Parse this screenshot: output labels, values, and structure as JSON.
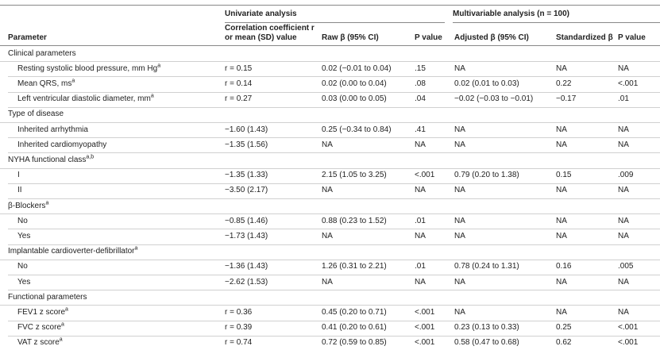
{
  "table": {
    "groups": [
      {
        "label": "Univariate analysis"
      },
      {
        "label": "Multivariable analysis (n = 100)"
      }
    ],
    "columns": [
      [
        "Parameter"
      ],
      [
        "Correlation coefficient r",
        "or mean (SD) value"
      ],
      [
        "Raw β (95% CI)"
      ],
      [
        "P value"
      ],
      [
        "Adjusted β (95% CI)"
      ],
      [
        "Standardized β"
      ],
      [
        "P value"
      ]
    ],
    "rows": [
      {
        "label": "Clinical parameters"
      },
      {
        "label": "Resting systolic blood pressure, mm Hg",
        "sup": "a",
        "cells": [
          "r = 0.15",
          "0.02 (−0.01 to 0.04)",
          ".15",
          "NA",
          "NA",
          "NA"
        ]
      },
      {
        "label": "Mean QRS, ms",
        "sup": "a",
        "cells": [
          "r = 0.14",
          "0.02 (0.00 to 0.04)",
          ".08",
          "0.02 (0.01 to 0.03)",
          "0.22",
          "<.001"
        ]
      },
      {
        "label": "Left ventricular diastolic diameter, mm",
        "sup": "a",
        "cells": [
          "r = 0.27",
          "0.03 (0.00 to 0.05)",
          ".04",
          "−0.02 (−0.03 to −0.01)",
          "−0.17",
          ".01"
        ]
      },
      {
        "label": "Type of disease"
      },
      {
        "label": "Inherited arrhythmia",
        "cells": [
          "−1.60 (1.43)",
          "0.25 (−0.34 to 0.84)",
          ".41",
          "NA",
          "NA",
          "NA"
        ]
      },
      {
        "label": "Inherited cardiomyopathy",
        "cells": [
          "−1.35 (1.56)",
          "NA",
          "NA",
          "NA",
          "NA",
          "NA"
        ]
      },
      {
        "label": "NYHA functional class",
        "sup": "a,b"
      },
      {
        "label": "I",
        "cells": [
          "−1.35 (1.33)",
          "2.15 (1.05 to 3.25)",
          "<.001",
          "0.79 (0.20 to 1.38)",
          "0.15",
          ".009"
        ]
      },
      {
        "label": "II",
        "cells": [
          "−3.50 (2.17)",
          "NA",
          "NA",
          "NA",
          "NA",
          "NA"
        ]
      },
      {
        "label": "β-Blockers",
        "sup": "a"
      },
      {
        "label": "No",
        "cells": [
          "−0.85 (1.46)",
          "0.88 (0.23 to 1.52)",
          ".01",
          "NA",
          "NA",
          "NA"
        ]
      },
      {
        "label": "Yes",
        "cells": [
          "−1.73 (1.43)",
          "NA",
          "NA",
          "NA",
          "NA",
          "NA"
        ]
      },
      {
        "label": "Implantable cardioverter-defibrillator",
        "sup": "a"
      },
      {
        "label": "No",
        "cells": [
          "−1.36 (1.43)",
          "1.26 (0.31 to 2.21)",
          ".01",
          "0.78 (0.24 to 1.31)",
          "0.16",
          ".005"
        ]
      },
      {
        "label": "Yes",
        "cells": [
          "−2.62 (1.53)",
          "NA",
          "NA",
          "NA",
          "NA",
          "NA"
        ]
      },
      {
        "label": "Functional parameters"
      },
      {
        "label": "FEV1 z score",
        "sup": "a",
        "cells": [
          "r = 0.36",
          "0.45 (0.20 to 0.71)",
          "<.001",
          "NA",
          "NA",
          "NA"
        ]
      },
      {
        "label": "FVC z score",
        "sup": "a",
        "cells": [
          "r = 0.39",
          "0.41 (0.20 to 0.61)",
          "<.001",
          "0.23 (0.13 to 0.33)",
          "0.25",
          "<.001"
        ]
      },
      {
        "label": "VAT z score",
        "sup": "a",
        "cells": [
          "r = 0.74",
          "0.72 (0.59 to 0.85)",
          "<.001",
          "0.58 (0.47 to 0.68)",
          "0.62",
          "<.001"
        ]
      }
    ]
  }
}
